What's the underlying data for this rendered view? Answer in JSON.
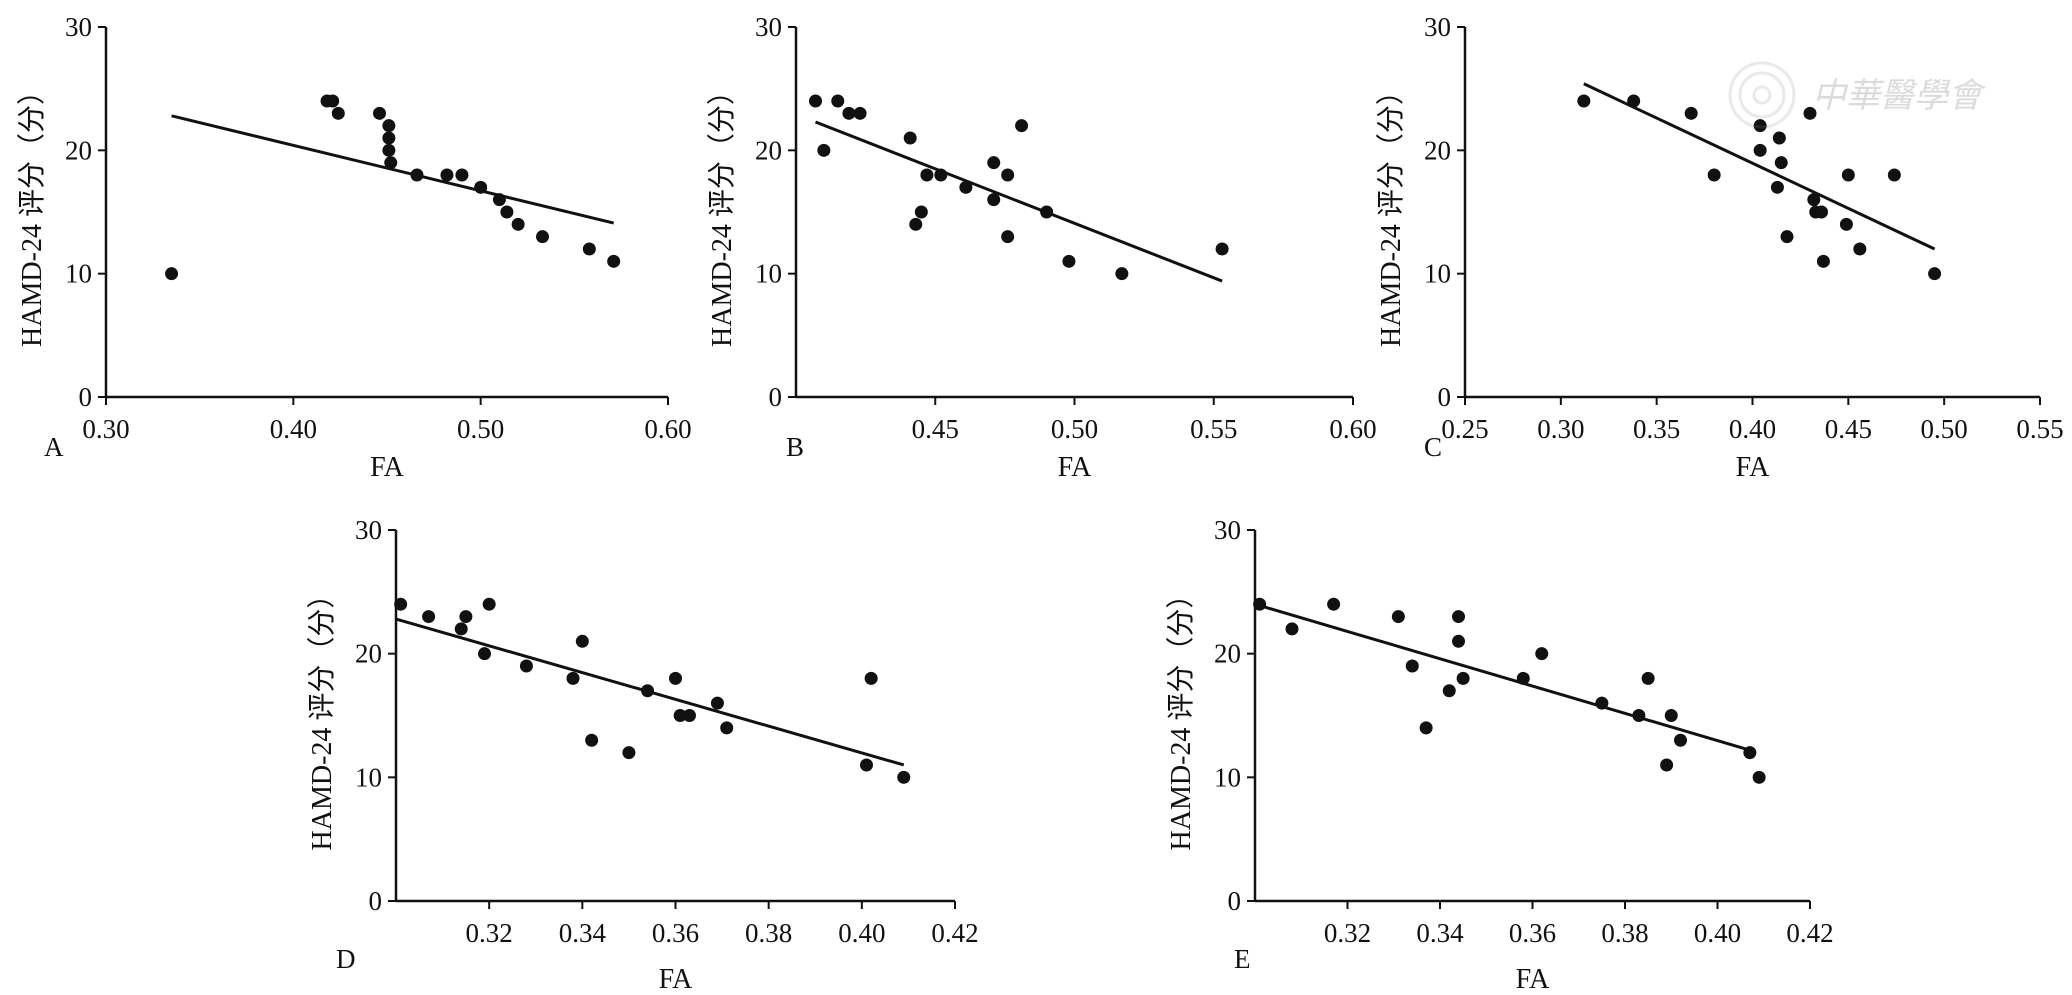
{
  "watermark": {
    "text": "中華醫學會"
  },
  "chart_data": [
    {
      "type": "scatter",
      "panel": "A",
      "xlabel": "FA",
      "ylabel": "HAMD-24 评分（分）",
      "xlim": [
        0.3,
        0.6
      ],
      "ylim": [
        0,
        30
      ],
      "xticks": [
        "0.30",
        "0.40",
        "0.50",
        "0.60"
      ],
      "yticks": [
        "0",
        "10",
        "20",
        "30"
      ],
      "points": [
        [
          0.335,
          10
        ],
        [
          0.418,
          24
        ],
        [
          0.421,
          24
        ],
        [
          0.424,
          23
        ],
        [
          0.446,
          23
        ],
        [
          0.451,
          22
        ],
        [
          0.451,
          21
        ],
        [
          0.451,
          20
        ],
        [
          0.452,
          19
        ],
        [
          0.466,
          18
        ],
        [
          0.482,
          18
        ],
        [
          0.49,
          18
        ],
        [
          0.5,
          17
        ],
        [
          0.51,
          16
        ],
        [
          0.514,
          15
        ],
        [
          0.52,
          14
        ],
        [
          0.533,
          13
        ],
        [
          0.558,
          12
        ],
        [
          0.571,
          11
        ]
      ],
      "fit_line": [
        [
          0.335,
          22.8
        ],
        [
          0.571,
          14.1
        ]
      ]
    },
    {
      "type": "scatter",
      "panel": "B",
      "xlabel": "FA",
      "ylabel": "HAMD-24 评分（分）",
      "xlim": [
        0.4,
        0.6
      ],
      "ylim": [
        0,
        30
      ],
      "xticks": [
        "0.45",
        "0.50",
        "0.55",
        "0.60"
      ],
      "yticks": [
        "0",
        "10",
        "20",
        "30"
      ],
      "points": [
        [
          0.407,
          24
        ],
        [
          0.41,
          20
        ],
        [
          0.415,
          24
        ],
        [
          0.419,
          23
        ],
        [
          0.423,
          23
        ],
        [
          0.441,
          21
        ],
        [
          0.443,
          14
        ],
        [
          0.445,
          15
        ],
        [
          0.447,
          18
        ],
        [
          0.452,
          18
        ],
        [
          0.461,
          17
        ],
        [
          0.471,
          19
        ],
        [
          0.471,
          16
        ],
        [
          0.476,
          18
        ],
        [
          0.476,
          13
        ],
        [
          0.481,
          22
        ],
        [
          0.49,
          15
        ],
        [
          0.498,
          11
        ],
        [
          0.517,
          10
        ],
        [
          0.553,
          12
        ]
      ],
      "fit_line": [
        [
          0.407,
          22.3
        ],
        [
          0.553,
          9.4
        ]
      ]
    },
    {
      "type": "scatter",
      "panel": "C",
      "xlabel": "FA",
      "ylabel": "HAMD-24 评分（分）",
      "xlim": [
        0.25,
        0.55
      ],
      "ylim": [
        0,
        30
      ],
      "xticks": [
        "0.25",
        "0.30",
        "0.35",
        "0.40",
        "0.45",
        "0.50",
        "0.55"
      ],
      "yticks": [
        "0",
        "10",
        "20",
        "30"
      ],
      "points": [
        [
          0.312,
          24
        ],
        [
          0.338,
          24
        ],
        [
          0.368,
          23
        ],
        [
          0.38,
          18
        ],
        [
          0.404,
          22
        ],
        [
          0.404,
          20
        ],
        [
          0.413,
          17
        ],
        [
          0.414,
          21
        ],
        [
          0.415,
          19
        ],
        [
          0.418,
          13
        ],
        [
          0.43,
          23
        ],
        [
          0.432,
          16
        ],
        [
          0.433,
          15
        ],
        [
          0.436,
          15
        ],
        [
          0.437,
          11
        ],
        [
          0.449,
          14
        ],
        [
          0.45,
          18
        ],
        [
          0.456,
          12
        ],
        [
          0.474,
          18
        ],
        [
          0.495,
          10
        ]
      ],
      "fit_line": [
        [
          0.312,
          25.4
        ],
        [
          0.495,
          12.0
        ]
      ]
    },
    {
      "type": "scatter",
      "panel": "D",
      "xlabel": "FA",
      "ylabel": "HAMD-24 评分（分）",
      "xlim": [
        0.3,
        0.42
      ],
      "ylim": [
        0,
        30
      ],
      "xticks": [
        "0.32",
        "0.34",
        "0.36",
        "0.38",
        "0.40",
        "0.42"
      ],
      "yticks": [
        "0",
        "10",
        "20",
        "30"
      ],
      "points": [
        [
          0.301,
          24
        ],
        [
          0.307,
          23
        ],
        [
          0.314,
          22
        ],
        [
          0.315,
          23
        ],
        [
          0.319,
          20
        ],
        [
          0.32,
          24
        ],
        [
          0.328,
          19
        ],
        [
          0.338,
          18
        ],
        [
          0.34,
          21
        ],
        [
          0.342,
          13
        ],
        [
          0.35,
          12
        ],
        [
          0.354,
          17
        ],
        [
          0.36,
          18
        ],
        [
          0.361,
          15
        ],
        [
          0.363,
          15
        ],
        [
          0.369,
          16
        ],
        [
          0.371,
          14
        ],
        [
          0.401,
          11
        ],
        [
          0.402,
          18
        ],
        [
          0.409,
          10
        ]
      ],
      "fit_line": [
        [
          0.3,
          22.8
        ],
        [
          0.409,
          11.0
        ]
      ]
    },
    {
      "type": "scatter",
      "panel": "E",
      "xlabel": "FA",
      "ylabel": "HAMD-24 评分（分）",
      "xlim": [
        0.3,
        0.42
      ],
      "ylim": [
        0,
        30
      ],
      "xticks": [
        "0.32",
        "0.34",
        "0.36",
        "0.38",
        "0.40",
        "0.42"
      ],
      "yticks": [
        "0",
        "10",
        "20",
        "30"
      ],
      "points": [
        [
          0.301,
          24
        ],
        [
          0.308,
          22
        ],
        [
          0.317,
          24
        ],
        [
          0.331,
          23
        ],
        [
          0.334,
          19
        ],
        [
          0.337,
          14
        ],
        [
          0.342,
          17
        ],
        [
          0.344,
          21
        ],
        [
          0.344,
          23
        ],
        [
          0.345,
          18
        ],
        [
          0.358,
          18
        ],
        [
          0.362,
          20
        ],
        [
          0.375,
          16
        ],
        [
          0.383,
          15
        ],
        [
          0.385,
          18
        ],
        [
          0.389,
          11
        ],
        [
          0.39,
          15
        ],
        [
          0.392,
          13
        ],
        [
          0.407,
          12
        ],
        [
          0.409,
          10
        ]
      ],
      "fit_line": [
        [
          0.3,
          24.0
        ],
        [
          0.407,
          12.2
        ]
      ]
    }
  ]
}
